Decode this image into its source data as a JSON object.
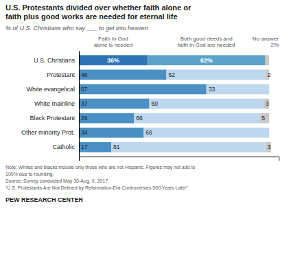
{
  "chart_data": {
    "type": "bar",
    "orientation": "horizontal",
    "stacked": true,
    "data_labels": true,
    "tick_labels": "y",
    "title": "U.S. Protestants divided over whether faith alone or\nfaith plus good works are needed for eternal life",
    "subtitle": "% of U.S. Christians who say ___ to get into heaven",
    "categories": [
      "U.S. Christians",
      "Protestant",
      "White evangelical",
      "White mainline",
      "Black Protestant",
      "Other minority Prot.",
      "Catholic"
    ],
    "series": [
      {
        "name": "Faith in God\nalone is needed",
        "colors": [
          "#2E74B5",
          "#4A90C4",
          "#4A90C4",
          "#4A90C4",
          "#4A90C4",
          "#4A90C4",
          "#4A90C4"
        ],
        "values": [
          36,
          46,
          67,
          37,
          29,
          34,
          17
        ],
        "value_labels": [
          "36%",
          "46",
          "67",
          "37",
          "29",
          "34",
          "17"
        ]
      },
      {
        "name": "Both good deeds and\nfaith in God are needed",
        "colors": [
          "#5BA3C9",
          "#BDD7EE",
          "#BDD7EE",
          "#BDD7EE",
          "#BDD7EE",
          "#BDD7EE",
          "#BDD7EE"
        ],
        "values": [
          62,
          52,
          33,
          60,
          66,
          66,
          81
        ],
        "value_labels": [
          "62%",
          "52",
          "33",
          "60",
          "66",
          "66",
          "81"
        ]
      },
      {
        "name": "No answer\n2%",
        "color": "#C8C8C8",
        "values": [
          2,
          2,
          0,
          3,
          5,
          0,
          3
        ],
        "value_labels": [
          null,
          "2",
          null,
          "3",
          "5",
          null,
          "3"
        ]
      }
    ],
    "xlim": [
      0,
      105
    ],
    "annotations": [
      "Note: Whites and blacks include only those who are not Hispanic. Figures may not add to",
      "100% due to rounding.",
      "Source: Survey conducted May 30-Aug. 9, 2017.",
      "“U.S. Protestants Are Not Defined by Reformation-Era Controversies 500 Years Later”",
      "PEW RESEARCH CENTER"
    ]
  }
}
